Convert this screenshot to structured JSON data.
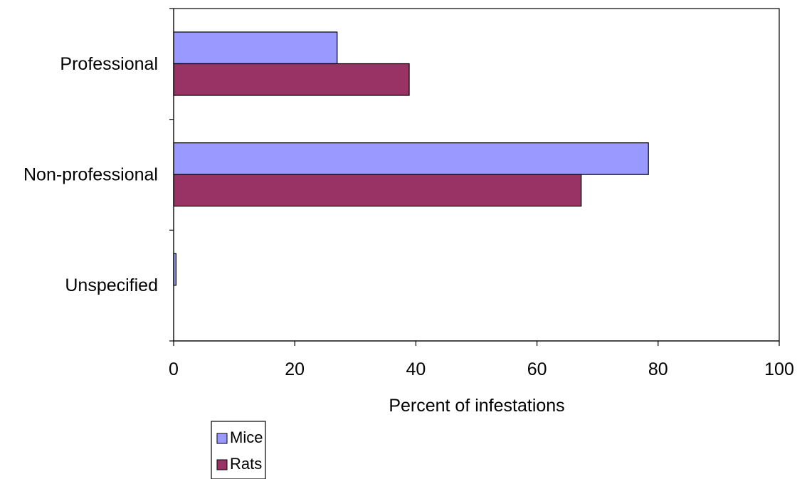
{
  "chart_data": {
    "type": "bar",
    "orientation": "horizontal",
    "categories": [
      "Professional",
      "Non-professional",
      "Unspecified"
    ],
    "series": [
      {
        "name": "Mice",
        "values": [
          27,
          78.4,
          0.4
        ],
        "color": "#9999ff"
      },
      {
        "name": "Rats",
        "values": [
          38.9,
          67.3,
          0
        ],
        "color": "#993366"
      }
    ],
    "xlabel": "Percent of infestations",
    "ylabel": "",
    "xlim": [
      0,
      100
    ],
    "xticks": [
      "0",
      "20",
      "40",
      "60",
      "80",
      "100"
    ],
    "grid": false,
    "legend": "bottom-left"
  }
}
